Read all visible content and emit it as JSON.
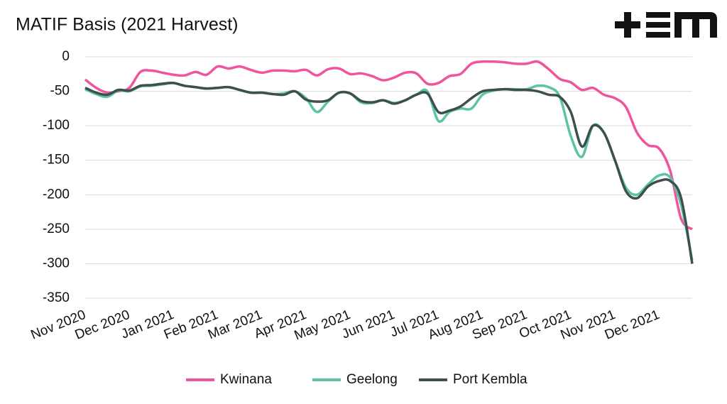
{
  "chart_data": {
    "type": "line",
    "title": "MATIF Basis (2021 Harvest)",
    "categories": [
      "Nov 2020",
      null,
      null,
      null,
      "Dec 2020",
      null,
      null,
      null,
      "Jan 2021",
      null,
      null,
      null,
      "Feb 2021",
      null,
      null,
      null,
      "Mar 2021",
      null,
      null,
      null,
      "Apr 2021",
      null,
      null,
      null,
      "May 2021",
      null,
      null,
      null,
      "Jun 2021",
      null,
      null,
      null,
      "Jul 2021",
      null,
      null,
      null,
      "Aug 2021",
      null,
      null,
      null,
      "Sep 2021",
      null,
      null,
      null,
      "Oct 2021",
      null,
      null,
      null,
      "Nov 2021",
      null,
      null,
      null,
      "Dec 2021",
      null,
      null,
      null
    ],
    "series": [
      {
        "name": "Kwinana",
        "color": "#f0549c",
        "values": [
          -33,
          -45,
          -52,
          -50,
          -45,
          -22,
          -20,
          -23,
          -26,
          -27,
          -22,
          -26,
          -14,
          -17,
          -14,
          -19,
          -23,
          -20,
          -20,
          -21,
          -19,
          -27,
          -18,
          -17,
          -25,
          -24,
          -28,
          -34,
          -30,
          -23,
          -24,
          -39,
          -38,
          -28,
          -25,
          -10,
          -7,
          -7,
          -8,
          -10,
          -10,
          -7,
          -18,
          -32,
          -37,
          -48,
          -45,
          -55,
          -60,
          -73,
          -110,
          -128,
          -133,
          -165,
          -235,
          -250
        ]
      },
      {
        "name": "Geelong",
        "color": "#5cc4a2",
        "values": [
          -47,
          -54,
          -58,
          -49,
          -50,
          -43,
          -42,
          -40,
          -38,
          -42,
          -44,
          -46,
          -45,
          -44,
          -48,
          -52,
          -52,
          -54,
          -53,
          -50,
          -60,
          -80,
          -65,
          -52,
          -53,
          -66,
          -67,
          -63,
          -67,
          -63,
          -55,
          -50,
          -93,
          -80,
          -75,
          -75,
          -55,
          -49,
          -47,
          -47,
          -47,
          -42,
          -44,
          -58,
          -115,
          -145,
          -100,
          -110,
          -150,
          -190,
          -200,
          -185,
          -172,
          -175,
          -215,
          -295
        ]
      },
      {
        "name": "Port Kembla",
        "color": "#3d4f50",
        "values": [
          -45,
          -52,
          -55,
          -48,
          -49,
          -42,
          -41,
          -39,
          -38,
          -42,
          -44,
          -46,
          -45,
          -44,
          -48,
          -52,
          -52,
          -54,
          -55,
          -50,
          -62,
          -65,
          -63,
          -52,
          -53,
          -64,
          -66,
          -63,
          -68,
          -63,
          -55,
          -53,
          -80,
          -78,
          -72,
          -60,
          -50,
          -48,
          -47,
          -48,
          -48,
          -50,
          -55,
          -58,
          -80,
          -130,
          -100,
          -110,
          -150,
          -195,
          -205,
          -188,
          -180,
          -180,
          -205,
          -300
        ]
      }
    ],
    "ylim": [
      -350,
      0
    ],
    "yticks": [
      0,
      -50,
      -100,
      -150,
      -200,
      -250,
      -300,
      -350
    ],
    "grid": true,
    "legend": "bottom"
  }
}
